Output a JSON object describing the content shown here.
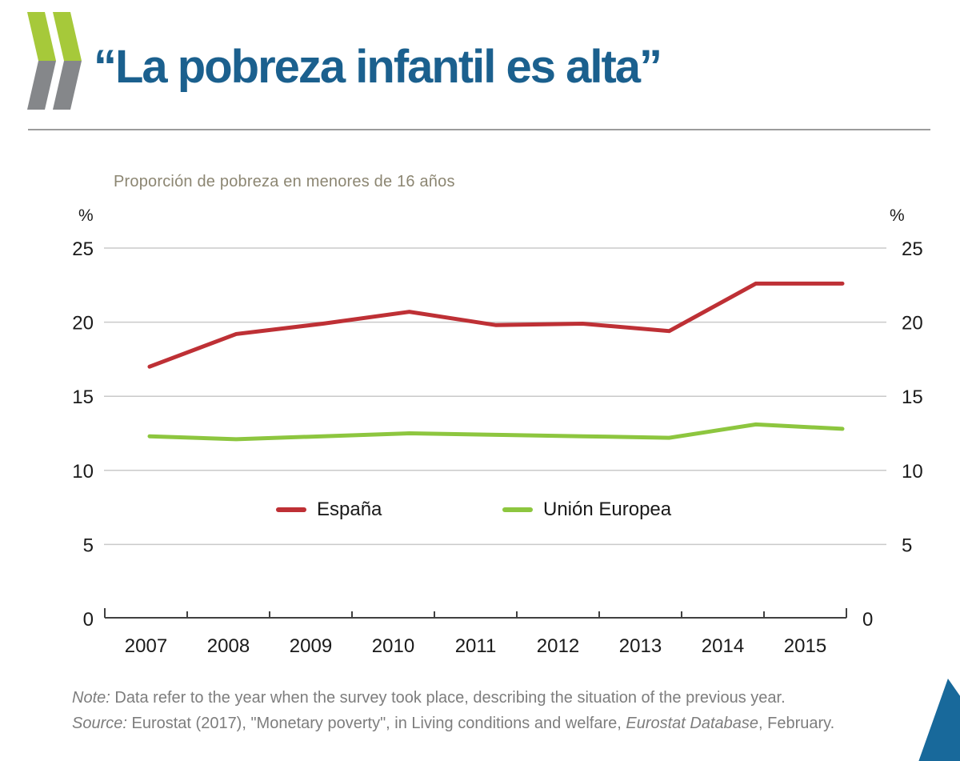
{
  "header": {
    "title": "“La pobreza infantil es alta”",
    "logo_name": "oecd-chevrons-logo"
  },
  "chart_data": {
    "type": "line",
    "title": "Proporción de pobreza en menores de 16 años",
    "unit_label": "%",
    "categories": [
      "2007",
      "2008",
      "2009",
      "2010",
      "2011",
      "2012",
      "2013",
      "2014",
      "2015"
    ],
    "series": [
      {
        "name": "España",
        "color": "#BE3035",
        "values": [
          17.0,
          19.2,
          19.9,
          20.7,
          19.8,
          19.9,
          19.4,
          22.6,
          22.6
        ]
      },
      {
        "name": "Unión Europea",
        "color": "#8DC63F",
        "values": [
          12.3,
          12.1,
          12.3,
          12.5,
          12.4,
          12.3,
          12.2,
          13.1,
          12.8
        ]
      }
    ],
    "y_ticks": [
      0,
      5,
      10,
      15,
      20,
      25
    ],
    "ylim": [
      0,
      25
    ],
    "grid": true,
    "y_axis_both_sides": true,
    "legend_position": "bottom-center"
  },
  "footer": {
    "note_label": "Note:",
    "note_text": " Data refer to the year when the survey took place, describing the situation of the previous year.",
    "source_label": "Source:",
    "source_text_1": " Eurostat (2017), \"Monetary poverty\", in Living conditions and welfare, ",
    "source_italic": "Eurostat Database",
    "source_text_2": ", February."
  },
  "colors": {
    "title_blue": "#1B608E",
    "accent_blue": "#18699B",
    "logo_green": "#A6C93A",
    "logo_gray": "#85878A",
    "grid_gray": "#CACACA",
    "axis_dark": "#404040",
    "tick_label": "#1a1a1a",
    "subtitle_olive": "#8C8672",
    "footer_gray": "#7d7d7d"
  }
}
